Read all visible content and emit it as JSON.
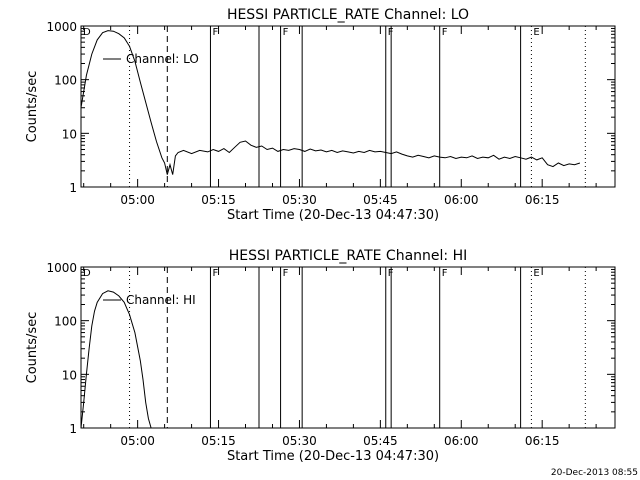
{
  "footer_timestamp": "20-Dec-2013 08:55",
  "chart_data": [
    {
      "type": "line",
      "title": "HESSI PARTICLE_RATE Channel: LO",
      "xlabel": "Start Time (20-Dec-13 04:47:30)",
      "ylabel": "Counts/sec",
      "y_scale": "log",
      "xlim": [
        "04:49:30",
        "06:28:30"
      ],
      "ylim": [
        1,
        1000
      ],
      "x_ticks": [
        "05:00",
        "05:15",
        "05:30",
        "05:45",
        "06:00",
        "06:15"
      ],
      "y_ticks": [
        "1",
        "10",
        "100",
        "1000"
      ],
      "legend": {
        "label": "Channel: LO",
        "placement": "top-left"
      },
      "series": [
        {
          "name": "Channel: LO",
          "x": [
            "04:49:30",
            "04:50:30",
            "04:51:30",
            "04:52:30",
            "04:53:30",
            "04:54:30",
            "04:55:30",
            "04:56:30",
            "04:57:30",
            "04:58:30",
            "04:59:30",
            "05:00:30",
            "05:01:30",
            "05:02:30",
            "05:03:30",
            "05:04:30",
            "05:05:00",
            "05:05:30",
            "05:06:00",
            "05:06:30",
            "05:07:00",
            "05:07:30",
            "05:08:30",
            "05:10:00",
            "05:11:30",
            "05:13:00",
            "05:14:00",
            "05:15:00",
            "05:16:00",
            "05:17:00",
            "05:18:00",
            "05:19:00",
            "05:20:00",
            "05:21:00",
            "05:22:00",
            "05:23:00",
            "05:24:00",
            "05:25:00",
            "05:26:00",
            "05:27:00",
            "05:28:00",
            "05:29:00",
            "05:30:00",
            "05:31:00",
            "05:32:00",
            "05:33:00",
            "05:34:00",
            "05:35:00",
            "05:36:00",
            "05:37:00",
            "05:38:00",
            "05:39:00",
            "05:40:00",
            "05:41:00",
            "05:42:00",
            "05:43:00",
            "05:44:00",
            "05:45:00",
            "05:46:00",
            "05:47:00",
            "05:48:00",
            "05:49:00",
            "05:50:00",
            "05:51:00",
            "05:52:00",
            "05:53:00",
            "05:54:00",
            "05:55:00",
            "05:56:00",
            "05:57:00",
            "05:58:00",
            "05:59:00",
            "06:00:00",
            "06:01:00",
            "06:02:00",
            "06:03:00",
            "06:04:00",
            "06:05:00",
            "06:06:00",
            "06:07:00",
            "06:08:00",
            "06:09:00",
            "06:10:00",
            "06:11:00",
            "06:12:00",
            "06:13:00",
            "06:14:00",
            "06:15:00",
            "06:16:00",
            "06:17:00",
            "06:18:00",
            "06:19:00",
            "06:20:00",
            "06:21:00",
            "06:22:00"
          ],
          "y": [
            30,
            120,
            300,
            550,
            750,
            820,
            800,
            720,
            600,
            420,
            220,
            90,
            38,
            16,
            7,
            3.5,
            2.8,
            1.7,
            2.6,
            1.7,
            3.8,
            4.4,
            4.8,
            4.2,
            4.8,
            4.5,
            5,
            4.6,
            5.2,
            4.4,
            5.5,
            6.8,
            7.2,
            6,
            5.5,
            5.8,
            5,
            5.3,
            4.6,
            5,
            4.8,
            5.2,
            5,
            4.6,
            5.1,
            4.7,
            4.9,
            4.5,
            4.8,
            4.4,
            4.7,
            4.5,
            4.3,
            4.6,
            4.4,
            4.8,
            4.5,
            4.6,
            4.4,
            4.2,
            4.5,
            4.1,
            3.8,
            3.6,
            3.9,
            3.7,
            3.5,
            3.8,
            3.6,
            3.5,
            3.7,
            3.4,
            3.6,
            3.5,
            3.8,
            3.4,
            3.6,
            3.5,
            3.9,
            3.3,
            3.6,
            3.4,
            3.7,
            3.5,
            3.3,
            3.6,
            3.2,
            3.5,
            2.6,
            2.4,
            2.8,
            2.5,
            2.7,
            2.6,
            2.8
          ]
        }
      ],
      "markers": [
        {
          "time": "04:58:30",
          "style": "dotted",
          "label": ""
        },
        {
          "time": "05:05:30",
          "style": "dashed",
          "label": ""
        },
        {
          "time": "05:13:30",
          "style": "solid",
          "label": "F"
        },
        {
          "time": "05:22:30",
          "style": "solid",
          "label": ""
        },
        {
          "time": "05:26:30",
          "style": "solid",
          "label": "F"
        },
        {
          "time": "05:30:30",
          "style": "solid",
          "label": ""
        },
        {
          "time": "05:46:00",
          "style": "solid",
          "label": "F"
        },
        {
          "time": "05:47:00",
          "style": "solid",
          "label": ""
        },
        {
          "time": "05:56:00",
          "style": "solid",
          "label": "F"
        },
        {
          "time": "06:11:00",
          "style": "solid",
          "label": ""
        },
        {
          "time": "06:13:00",
          "style": "dotted",
          "label": "E"
        },
        {
          "time": "06:23:00",
          "style": "dotted",
          "label": ""
        }
      ],
      "corner_label": "D"
    },
    {
      "type": "line",
      "title": "HESSI PARTICLE_RATE Channel: HI",
      "xlabel": "Start Time (20-Dec-13 04:47:30)",
      "ylabel": "Counts/sec",
      "y_scale": "log",
      "xlim": [
        "04:49:30",
        "06:28:30"
      ],
      "ylim": [
        1,
        1000
      ],
      "x_ticks": [
        "05:00",
        "05:15",
        "05:30",
        "05:45",
        "06:00",
        "06:15"
      ],
      "y_ticks": [
        "1",
        "10",
        "100",
        "1000"
      ],
      "legend": {
        "label": "Channel: HI",
        "placement": "top-left"
      },
      "series": [
        {
          "name": "Channel: HI",
          "x": [
            "04:49:30",
            "04:50:00",
            "04:50:30",
            "04:51:00",
            "04:51:30",
            "04:52:00",
            "04:52:30",
            "04:53:30",
            "04:54:30",
            "04:55:30",
            "04:56:30",
            "04:57:30",
            "04:58:30",
            "04:59:30",
            "05:00:30",
            "05:01:00",
            "05:01:30",
            "05:02:00",
            "05:02:30"
          ],
          "y": [
            1,
            3,
            10,
            30,
            80,
            150,
            220,
            320,
            360,
            340,
            290,
            220,
            130,
            60,
            18,
            8,
            3,
            1.5,
            1
          ]
        }
      ],
      "markers": [
        {
          "time": "04:58:30",
          "style": "dotted",
          "label": ""
        },
        {
          "time": "05:05:30",
          "style": "dashed",
          "label": ""
        },
        {
          "time": "05:13:30",
          "style": "solid",
          "label": "F"
        },
        {
          "time": "05:22:30",
          "style": "solid",
          "label": ""
        },
        {
          "time": "05:26:30",
          "style": "solid",
          "label": "F"
        },
        {
          "time": "05:30:30",
          "style": "solid",
          "label": ""
        },
        {
          "time": "05:46:00",
          "style": "solid",
          "label": "F"
        },
        {
          "time": "05:47:00",
          "style": "solid",
          "label": ""
        },
        {
          "time": "05:56:00",
          "style": "solid",
          "label": "F"
        },
        {
          "time": "06:11:00",
          "style": "solid",
          "label": ""
        },
        {
          "time": "06:13:00",
          "style": "dotted",
          "label": "E"
        },
        {
          "time": "06:23:00",
          "style": "dotted",
          "label": ""
        }
      ],
      "corner_label": "D"
    }
  ]
}
